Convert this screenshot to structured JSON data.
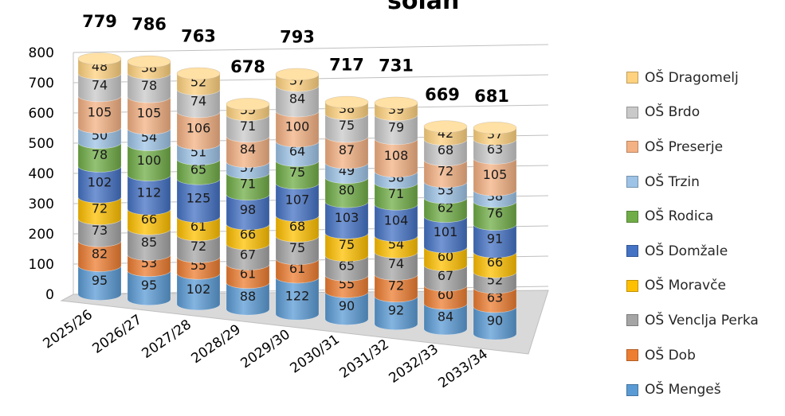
{
  "chart_data": {
    "type": "bar",
    "stacked": true,
    "three_d": true,
    "title_fragment": "šolah",
    "categories": [
      "2025/26",
      "2026/27",
      "2027/28",
      "2028/29",
      "2029/30",
      "2030/31",
      "2031/32",
      "2032/33",
      "2033/34"
    ],
    "totals": [
      779,
      786,
      763,
      678,
      793,
      717,
      731,
      669,
      681
    ],
    "series": [
      {
        "name": "OŠ Mengeš",
        "color": "#5b9bd5",
        "values": [
          95,
          95,
          102,
          88,
          122,
          90,
          92,
          84,
          90
        ]
      },
      {
        "name": "OŠ Dob",
        "color": "#ed7d31",
        "values": [
          82,
          53,
          55,
          61,
          61,
          55,
          72,
          60,
          63
        ]
      },
      {
        "name": "OŠ Venclja Perka",
        "color": "#a5a5a5",
        "values": [
          73,
          85,
          72,
          67,
          75,
          65,
          74,
          67,
          52
        ]
      },
      {
        "name": "OŠ Moravče",
        "color": "#ffc000",
        "values": [
          72,
          66,
          61,
          66,
          68,
          75,
          54,
          60,
          66
        ]
      },
      {
        "name": "OŠ Domžale",
        "color": "#4472c4",
        "values": [
          102,
          112,
          125,
          98,
          107,
          103,
          104,
          101,
          91
        ]
      },
      {
        "name": "OŠ Rodica",
        "color": "#70ad47",
        "values": [
          78,
          100,
          65,
          71,
          75,
          80,
          71,
          62,
          76
        ]
      },
      {
        "name": "OŠ Trzin",
        "color": "#9dc3e6",
        "values": [
          50,
          54,
          51,
          37,
          64,
          49,
          38,
          53,
          38
        ]
      },
      {
        "name": "OŠ Preserje",
        "color": "#f4b183",
        "values": [
          105,
          105,
          106,
          84,
          100,
          87,
          108,
          72,
          105
        ]
      },
      {
        "name": "OŠ Brdo",
        "color": "#c9c9c9",
        "values": [
          74,
          78,
          74,
          71,
          84,
          75,
          79,
          68,
          63
        ]
      },
      {
        "name": "OŠ Dragomelj",
        "color": "#ffd27f",
        "values": [
          48,
          38,
          52,
          35,
          37,
          38,
          39,
          42,
          37
        ]
      }
    ],
    "yticks": [
      "0",
      "100",
      "200",
      "300",
      "400",
      "500",
      "600",
      "700",
      "800"
    ],
    "ylim": [
      0,
      800
    ],
    "grid": true,
    "legend_position": "right"
  }
}
